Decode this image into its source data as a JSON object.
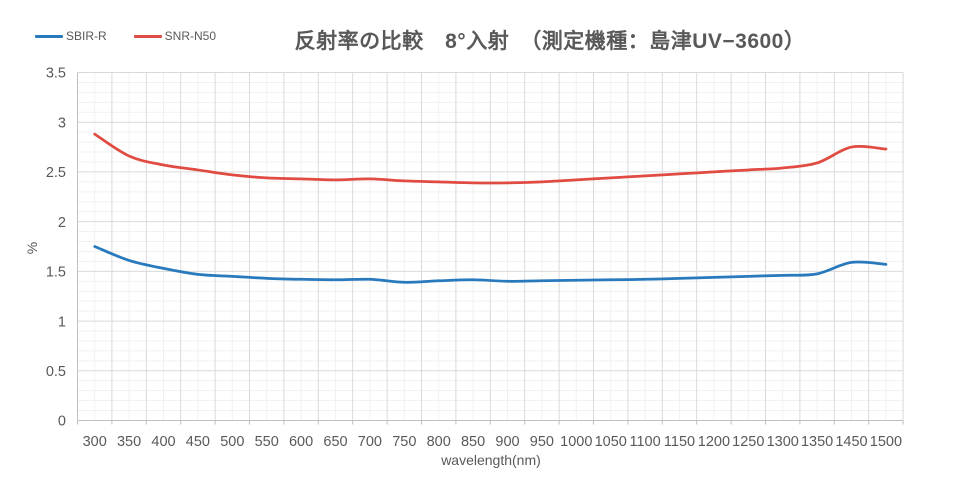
{
  "title": "反射率の比較　8°入射　（測定機種：島津UV−3600）",
  "legend": {
    "items": [
      {
        "label": "SBIR-R",
        "color": "#2979BD"
      },
      {
        "label": "SNR-N50",
        "color": "#E04B42"
      }
    ]
  },
  "chart_data": {
    "type": "line",
    "smoothed": true,
    "title": "反射率の比較　8°入射　（測定機種：島津UV−3600）",
    "xlabel": "wavelength(nm)",
    "ylabel": "%",
    "ylim": [
      0,
      3.5
    ],
    "y_major_unit": 0.5,
    "y_minor_unit": 0.1,
    "x_minor_gridlines": true,
    "grid": "major+minor",
    "legend_position": "top-left",
    "y_tick_labels": [
      "3.5",
      "3",
      "2.5",
      "2",
      "1.5",
      "1",
      "0.5",
      "0"
    ],
    "categories": [
      "300",
      "350",
      "400",
      "450",
      "500",
      "550",
      "600",
      "650",
      "700",
      "750",
      "800",
      "850",
      "900",
      "950",
      "1000",
      "1050",
      "1100",
      "1150",
      "1200",
      "1250",
      "1300",
      "1350",
      "1450",
      "1500"
    ],
    "series": [
      {
        "name": "SBIR-R",
        "color": "#2979BD",
        "values": [
          1.75,
          1.61,
          1.53,
          1.47,
          1.45,
          1.43,
          1.42,
          1.415,
          1.42,
          1.39,
          1.405,
          1.415,
          1.4,
          1.405,
          1.41,
          1.415,
          1.42,
          1.43,
          1.44,
          1.45,
          1.46,
          1.475,
          1.59,
          1.57
        ]
      },
      {
        "name": "SNR-N50",
        "color": "#E04B42",
        "values": [
          2.88,
          2.66,
          2.57,
          2.52,
          2.47,
          2.44,
          2.43,
          2.42,
          2.43,
          2.41,
          2.4,
          2.39,
          2.39,
          2.4,
          2.42,
          2.44,
          2.46,
          2.48,
          2.5,
          2.52,
          2.54,
          2.59,
          2.75,
          2.73
        ]
      }
    ]
  },
  "colors": {
    "title_text": "#595959",
    "axis_text": "#595959",
    "grid_major": "#D9D9D9",
    "grid_minor": "#F1F1F1",
    "axis_line": "#BFBFBF"
  }
}
